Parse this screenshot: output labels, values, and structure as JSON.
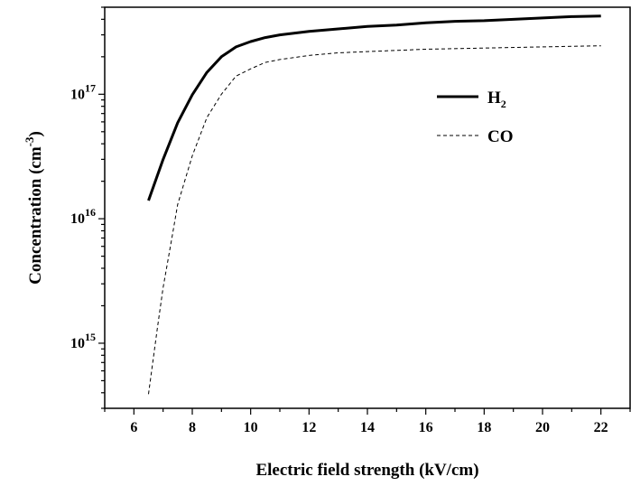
{
  "chart_data": {
    "type": "line",
    "title": "",
    "xlabel": "Electric field strength (kV/cm)",
    "ylabel": "Concentration (cm",
    "ylabel_superscript": "-3",
    "ylabel_suffix": ")",
    "xlim": [
      5,
      23
    ],
    "ylim": [
      300000000000000.0,
      5e+17
    ],
    "yscale": "log",
    "grid": false,
    "legend_position": "top-right",
    "x_ticks": [
      6,
      8,
      10,
      12,
      14,
      16,
      18,
      20,
      22
    ],
    "y_ticks": [
      {
        "value": 1000000000000000.0,
        "base": "10",
        "exp": "15"
      },
      {
        "value": 1e+16,
        "base": "10",
        "exp": "16"
      },
      {
        "value": 1e+17,
        "base": "10",
        "exp": "17"
      }
    ],
    "series": [
      {
        "name": "H",
        "name_subscript": "2",
        "line": "solid",
        "color": "#000000",
        "x": [
          6.5,
          7.0,
          7.5,
          8.0,
          8.5,
          9.0,
          9.5,
          10.0,
          10.5,
          11.0,
          12.0,
          13.0,
          14.0,
          15.0,
          16.0,
          17.0,
          18.0,
          19.0,
          20.0,
          21.0,
          22.0
        ],
        "y": [
          1.4e+16,
          3e+16,
          5.9e+16,
          9.9e+16,
          1.5e+17,
          2e+17,
          2.4e+17,
          2.65e+17,
          2.85e+17,
          3e+17,
          3.2e+17,
          3.35e+17,
          3.5e+17,
          3.6e+17,
          3.75e+17,
          3.85e+17,
          3.9e+17,
          4e+17,
          4.1e+17,
          4.2e+17,
          4.25e+17
        ]
      },
      {
        "name": "CO",
        "line": "dashed",
        "color": "#000000",
        "x": [
          6.5,
          6.8,
          7.0,
          7.3,
          7.5,
          8.0,
          8.5,
          9.0,
          9.5,
          10.0,
          10.5,
          11.0,
          12.0,
          13.0,
          14.0,
          16.0,
          18.0,
          20.0,
          22.0
        ],
        "y": [
          390000000000000.0,
          1300000000000000.0,
          2800000000000000.0,
          7000000000000000.0,
          1.3e+16,
          3.2e+16,
          6.5e+16,
          1e+17,
          1.4e+17,
          1.6e+17,
          1.8e+17,
          1.9e+17,
          2.05e+17,
          2.15e+17,
          2.2e+17,
          2.3e+17,
          2.35e+17,
          2.4e+17,
          2.45e+17
        ]
      }
    ]
  }
}
